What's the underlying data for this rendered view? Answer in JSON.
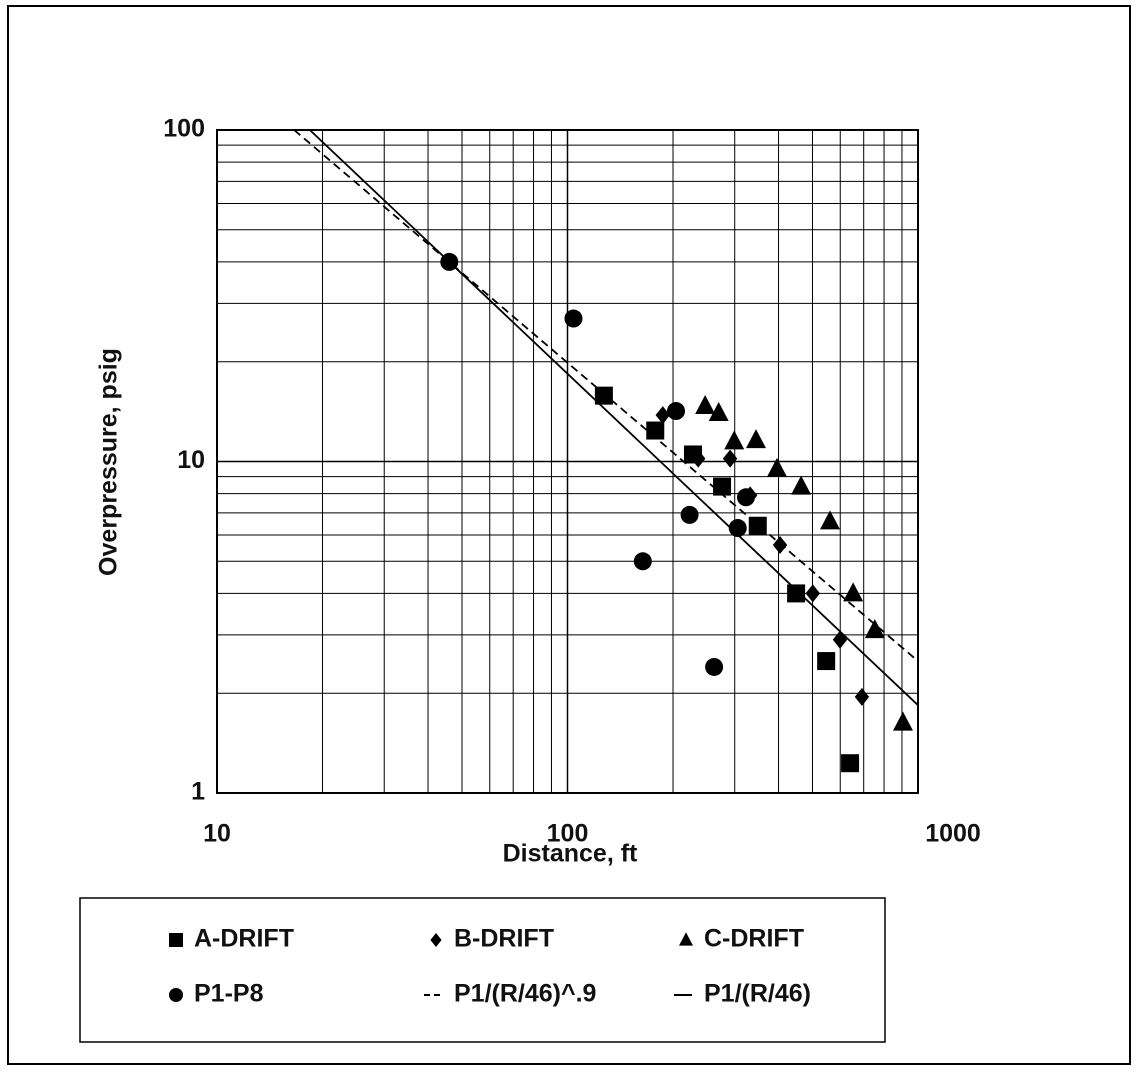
{
  "chart_data": {
    "type": "scatter",
    "x_label": "Distance, ft",
    "y_label": "Overpressure, psig",
    "xlog": true,
    "ylog": true,
    "grid": true,
    "xlim": [
      10,
      1000
    ],
    "ylim": [
      1,
      100
    ],
    "xticks": [
      10,
      100,
      1000
    ],
    "yticks": [
      1,
      10,
      100
    ],
    "series": [
      {
        "name": "A-DRIFT",
        "marker": "square",
        "color": "#000000",
        "x": [
          127,
          178,
          228,
          276,
          349,
          449,
          547,
          640
        ],
        "values": [
          15.8,
          12.4,
          10.5,
          8.4,
          6.4,
          4.0,
          2.5,
          1.23
        ]
      },
      {
        "name": "B-DRIFT",
        "marker": "diamond",
        "color": "#000000",
        "x": [
          187,
          236,
          291,
          332,
          404,
          501,
          599,
          692
        ],
        "values": [
          13.8,
          10.2,
          10.2,
          7.9,
          5.6,
          4.0,
          2.9,
          1.95
        ]
      },
      {
        "name": "C-DRIFT",
        "marker": "triangle",
        "color": "#000000",
        "x": [
          247,
          270,
          299,
          345,
          396,
          464,
          561,
          653,
          753,
          906
        ],
        "values": [
          14.7,
          14.0,
          11.5,
          11.6,
          9.5,
          8.4,
          6.6,
          4.0,
          3.1,
          1.63
        ]
      },
      {
        "name": "P1-P8",
        "marker": "circle",
        "color": "#000000",
        "x": [
          46,
          104,
          204,
          223,
          306,
          323,
          164,
          262
        ],
        "values": [
          40,
          27,
          14.2,
          6.9,
          6.3,
          7.8,
          5.0,
          2.4
        ]
      },
      {
        "name": "P1/(R/46)^.9",
        "line": "dashed",
        "color": "#000000",
        "x": [
          16.6,
          1000
        ],
        "values": [
          100,
          2.5
        ]
      },
      {
        "name": "P1/(R/46)",
        "line": "solid",
        "color": "#000000",
        "x": [
          18.4,
          1000
        ],
        "values": [
          100,
          1.84
        ]
      }
    ]
  }
}
